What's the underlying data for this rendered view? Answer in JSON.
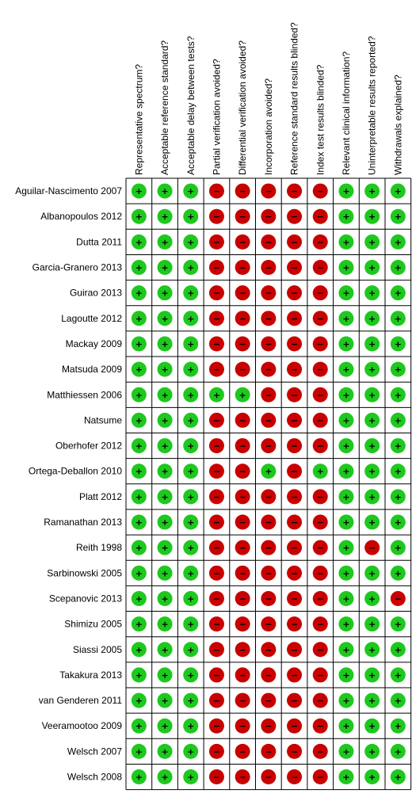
{
  "chart_data": {
    "type": "table",
    "columns": [
      "Representative spectrum?",
      "Acceptable reference standard?",
      "Acceptable delay between tests?",
      "Partial verification avoided?",
      "Differential verification avoided?",
      "Incorporation avoided?",
      "Reference standard results blinded?",
      "Index test results blinded?",
      "Relevant clinical information?",
      "Uninterpretable results reported?",
      "Withdrawals explained?"
    ],
    "rows": [
      {
        "study": "Aguilar-Nascimento 2007",
        "values": [
          "+",
          "+",
          "+",
          "-",
          "-",
          "-",
          "-",
          "-",
          "+",
          "+",
          "+"
        ]
      },
      {
        "study": "Albanopoulos 2012",
        "values": [
          "+",
          "+",
          "+",
          "-",
          "-",
          "-",
          "-",
          "-",
          "+",
          "+",
          "+"
        ]
      },
      {
        "study": "Dutta 2011",
        "values": [
          "+",
          "+",
          "+",
          "-",
          "-",
          "-",
          "-",
          "-",
          "+",
          "+",
          "+"
        ]
      },
      {
        "study": "Garcia-Granero 2013",
        "values": [
          "+",
          "+",
          "+",
          "-",
          "-",
          "-",
          "-",
          "-",
          "+",
          "+",
          "+"
        ]
      },
      {
        "study": "Guirao 2013",
        "values": [
          "+",
          "+",
          "+",
          "-",
          "-",
          "-",
          "-",
          "-",
          "+",
          "+",
          "+"
        ]
      },
      {
        "study": "Lagoutte 2012",
        "values": [
          "+",
          "+",
          "+",
          "-",
          "-",
          "-",
          "-",
          "-",
          "+",
          "+",
          "+"
        ]
      },
      {
        "study": "Mackay 2009",
        "values": [
          "+",
          "+",
          "+",
          "-",
          "-",
          "-",
          "-",
          "-",
          "+",
          "+",
          "+"
        ]
      },
      {
        "study": "Matsuda 2009",
        "values": [
          "+",
          "+",
          "+",
          "-",
          "-",
          "-",
          "-",
          "-",
          "+",
          "+",
          "+"
        ]
      },
      {
        "study": "Matthiessen 2006",
        "values": [
          "+",
          "+",
          "+",
          "+",
          "+",
          "-",
          "-",
          "-",
          "+",
          "+",
          "+"
        ]
      },
      {
        "study": "Natsume",
        "values": [
          "+",
          "+",
          "+",
          "-",
          "-",
          "-",
          "-",
          "-",
          "+",
          "+",
          "+"
        ]
      },
      {
        "study": "Oberhofer 2012",
        "values": [
          "+",
          "+",
          "+",
          "-",
          "-",
          "-",
          "-",
          "-",
          "+",
          "+",
          "+"
        ]
      },
      {
        "study": "Ortega-Deballon 2010",
        "values": [
          "+",
          "+",
          "+",
          "-",
          "-",
          "+",
          "-",
          "+",
          "+",
          "+",
          "+"
        ]
      },
      {
        "study": "Platt 2012",
        "values": [
          "+",
          "+",
          "+",
          "-",
          "-",
          "-",
          "-",
          "-",
          "+",
          "+",
          "+"
        ]
      },
      {
        "study": "Ramanathan 2013",
        "values": [
          "+",
          "+",
          "+",
          "-",
          "-",
          "-",
          "-",
          "-",
          "+",
          "+",
          "+"
        ]
      },
      {
        "study": "Reith 1998",
        "values": [
          "+",
          "+",
          "+",
          "-",
          "-",
          "-",
          "-",
          "-",
          "+",
          "-",
          "+"
        ]
      },
      {
        "study": "Sarbinowski 2005",
        "values": [
          "+",
          "+",
          "+",
          "-",
          "-",
          "-",
          "-",
          "-",
          "+",
          "+",
          "+"
        ]
      },
      {
        "study": "Scepanovic 2013",
        "values": [
          "+",
          "+",
          "+",
          "-",
          "-",
          "-",
          "-",
          "-",
          "+",
          "+",
          "-"
        ]
      },
      {
        "study": "Shimizu 2005",
        "values": [
          "+",
          "+",
          "+",
          "-",
          "-",
          "-",
          "-",
          "-",
          "+",
          "+",
          "+"
        ]
      },
      {
        "study": "Siassi 2005",
        "values": [
          "+",
          "+",
          "+",
          "-",
          "-",
          "-",
          "-",
          "-",
          "+",
          "+",
          "+"
        ]
      },
      {
        "study": "Takakura 2013",
        "values": [
          "+",
          "+",
          "+",
          "-",
          "-",
          "-",
          "-",
          "-",
          "+",
          "+",
          "+"
        ]
      },
      {
        "study": "van Genderen 2011",
        "values": [
          "+",
          "+",
          "+",
          "-",
          "-",
          "-",
          "-",
          "-",
          "+",
          "+",
          "+"
        ]
      },
      {
        "study": "Veeramootoo 2009",
        "values": [
          "+",
          "+",
          "+",
          "-",
          "-",
          "-",
          "-",
          "-",
          "+",
          "+",
          "+"
        ]
      },
      {
        "study": "Welsch 2007",
        "values": [
          "+",
          "+",
          "+",
          "-",
          "-",
          "-",
          "-",
          "-",
          "+",
          "+",
          "+"
        ]
      },
      {
        "study": "Welsch 2008",
        "values": [
          "+",
          "+",
          "+",
          "-",
          "-",
          "-",
          "-",
          "-",
          "+",
          "+",
          "+"
        ]
      }
    ],
    "symbols": {
      "+": "+",
      "-": "−"
    },
    "colors": {
      "low_risk": "#1ec81e",
      "high_risk": "#c80000",
      "grid": "#000000"
    }
  }
}
